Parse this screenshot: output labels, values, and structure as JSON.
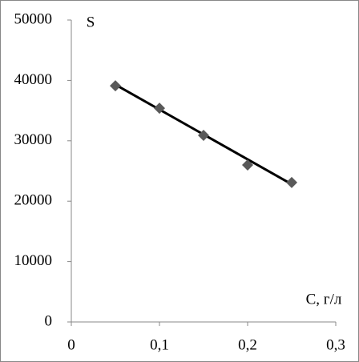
{
  "chart_data": {
    "type": "scatter",
    "y_label": "S",
    "x_label": "С, г/л",
    "series": [
      {
        "color": "#595959",
        "x": [
          0.05,
          0.1,
          0.15,
          0.2,
          0.25
        ],
        "values": [
          39100,
          35400,
          30900,
          26000,
          23100
        ]
      }
    ],
    "trendline": {
      "color": "#000000",
      "x": [
        0.05,
        0.25
      ],
      "values": [
        39300,
        22800
      ]
    },
    "xlim": [
      0,
      0.3
    ],
    "xticks": [
      0,
      {
        "value": 0.1,
        "label": "0,1"
      },
      {
        "value": 0.2,
        "label": "0,2"
      },
      {
        "value": 0.3,
        "label": "0,3"
      }
    ],
    "ylim": [
      0,
      50000
    ],
    "yticks": [
      0,
      10000,
      20000,
      30000,
      40000,
      50000
    ]
  }
}
